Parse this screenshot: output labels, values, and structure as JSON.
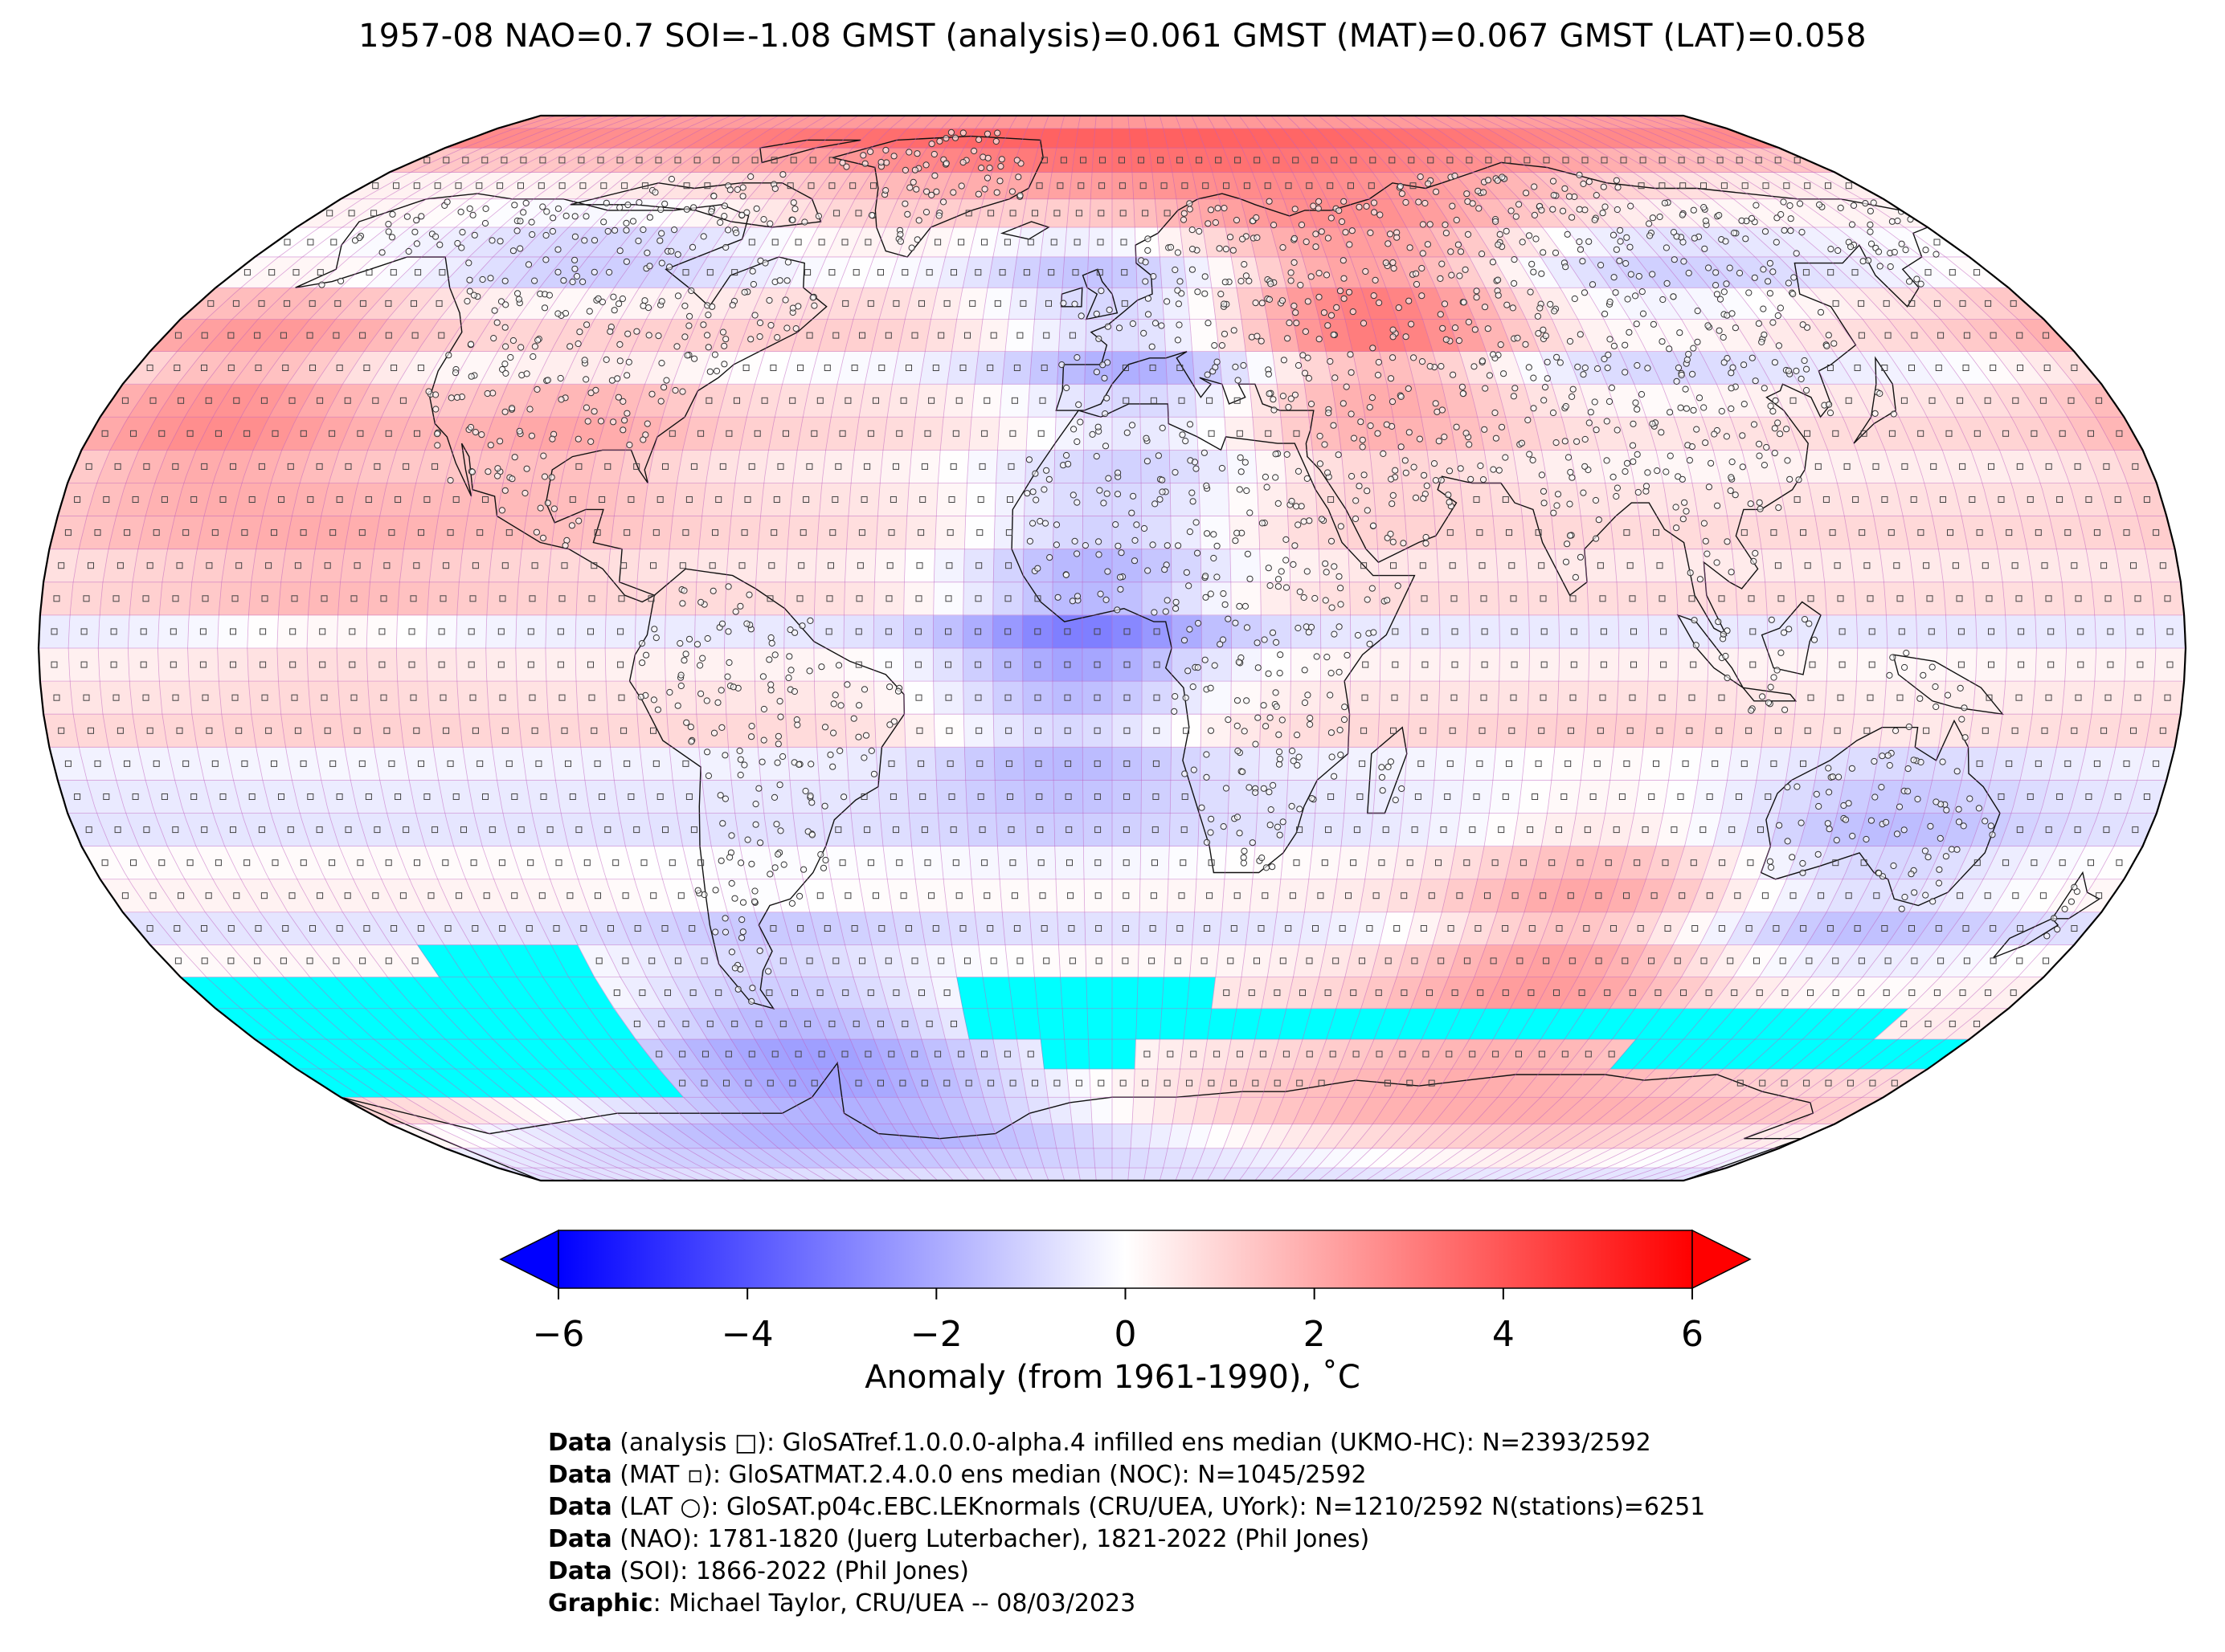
{
  "title": "1957-08 NAO=0.7 SOI=-1.08 GMST (analysis)=0.061 GMST (MAT)=0.067 GMST (LAT)=0.058",
  "colors": {
    "neg_max": "#0000ff",
    "zero": "#ffffff",
    "pos_max": "#ff0000",
    "missing": "#00ffff",
    "grid": "#c060c0",
    "coast": "#111111"
  },
  "colorbar": {
    "min": -6,
    "max": 6,
    "extend": "both",
    "ticks": [
      {
        "value": -6,
        "label": "−6"
      },
      {
        "value": -4,
        "label": "−4"
      },
      {
        "value": -2,
        "label": "−2"
      },
      {
        "value": 0,
        "label": "0"
      },
      {
        "value": 2,
        "label": "2"
      },
      {
        "value": 4,
        "label": "4"
      },
      {
        "value": 6,
        "label": "6"
      }
    ],
    "label": "Anomaly (from 1961-1990), ˚C"
  },
  "credits": [
    {
      "bold": "Data",
      "text": " (analysis □): GloSATref.1.0.0.0-alpha.4 infilled ens median (UKMO-HC): N=2393/2592"
    },
    {
      "bold": "Data",
      "text": " (MAT ▫): GloSATMAT.2.4.0.0 ens median (NOC): N=1045/2592"
    },
    {
      "bold": "Data",
      "text": " (LAT ○): GloSAT.p04c.EBC.LEKnormals (CRU/UEA, UYork): N=1210/2592 N(stations)=6251"
    },
    {
      "bold": "Data",
      "text": " (NAO): 1781-1820 (Juerg Luterbacher), 1821-2022 (Phil Jones)"
    },
    {
      "bold": "Data",
      "text": " (SOI): 1866-2022 (Phil Jones)"
    },
    {
      "bold": "Graphic",
      "text": ": Michael Taylor, CRU/UEA -- 08/03/2023"
    }
  ],
  "map": {
    "projection": "Robinson",
    "grid_resolution_deg": 5,
    "zonal_anomaly_profile": [
      {
        "lat": 87.5,
        "value": 0.6
      },
      {
        "lat": 82.5,
        "value": 1.5
      },
      {
        "lat": 77.5,
        "value": 1.0
      },
      {
        "lat": 72.5,
        "value": 0.4
      },
      {
        "lat": 67.5,
        "value": 0.2
      },
      {
        "lat": 62.5,
        "value": -0.4
      },
      {
        "lat": 57.5,
        "value": -0.6
      },
      {
        "lat": 52.5,
        "value": 0.4
      },
      {
        "lat": 47.5,
        "value": 0.8
      },
      {
        "lat": 42.5,
        "value": -0.3
      },
      {
        "lat": 37.5,
        "value": 0.6
      },
      {
        "lat": 32.5,
        "value": 0.9
      },
      {
        "lat": 27.5,
        "value": 0.4
      },
      {
        "lat": 22.5,
        "value": 0.7
      },
      {
        "lat": 17.5,
        "value": 0.9
      },
      {
        "lat": 12.5,
        "value": 0.5
      },
      {
        "lat": 7.5,
        "value": 0.8
      },
      {
        "lat": 2.5,
        "value": -0.5
      },
      {
        "lat": -2.5,
        "value": 0.3
      },
      {
        "lat": -7.5,
        "value": 0.6
      },
      {
        "lat": -12.5,
        "value": 0.9
      },
      {
        "lat": -17.5,
        "value": -0.3
      },
      {
        "lat": -22.5,
        "value": -0.5
      },
      {
        "lat": -27.5,
        "value": -0.6
      },
      {
        "lat": -32.5,
        "value": 0.1
      },
      {
        "lat": -37.5,
        "value": 0.3
      },
      {
        "lat": -42.5,
        "value": -0.6
      },
      {
        "lat": -47.5,
        "value": 0.2
      },
      {
        "lat": -52.5,
        "value": 0.5
      },
      {
        "lat": -57.5,
        "value": 0.6
      },
      {
        "lat": -62.5,
        "value": 0.5
      },
      {
        "lat": -67.5,
        "value": 0.9
      },
      {
        "lat": -72.5,
        "value": 1.2
      },
      {
        "lat": -77.5,
        "value": 0.8
      },
      {
        "lat": -82.5,
        "value": 0.7
      },
      {
        "lat": -87.5,
        "value": 0.6
      }
    ],
    "regional_anomalies": [
      {
        "region": "Greenland / Labrador Sea",
        "lat": 72,
        "lon": -55,
        "value": 2.6
      },
      {
        "region": "Northwest Russia",
        "lat": 65,
        "lon": 50,
        "value": 3.2
      },
      {
        "region": "Eastern Europe",
        "lat": 50,
        "lon": 40,
        "value": 2.0
      },
      {
        "region": "Western Canada",
        "lat": 55,
        "lon": -115,
        "value": -1.6
      },
      {
        "region": "Central Europe",
        "lat": 52,
        "lon": 12,
        "value": -2.0
      },
      {
        "region": "Siberia",
        "lat": 55,
        "lon": 95,
        "value": -1.6
      },
      {
        "region": "Hudson Bay",
        "lat": 60,
        "lon": -80,
        "value": -1.8
      },
      {
        "region": "Central USA",
        "lat": 40,
        "lon": -95,
        "value": 1.4
      },
      {
        "region": "Eastern Pacific",
        "lat": 15,
        "lon": -130,
        "value": 1.8
      },
      {
        "region": "North Pacific",
        "lat": 40,
        "lon": -160,
        "value": 1.6
      },
      {
        "region": "Antarctic Peninsula",
        "lat": -70,
        "lon": -65,
        "value": -2.2
      },
      {
        "region": "East Antarctica",
        "lat": -73,
        "lon": 90,
        "value": 1.6
      },
      {
        "region": "Southern Ocean (Indian)",
        "lat": -45,
        "lon": 85,
        "value": 1.4
      },
      {
        "region": "Southern Australia",
        "lat": -35,
        "lon": 135,
        "value": -1.0
      },
      {
        "region": "West Africa",
        "lat": 10,
        "lon": 0,
        "value": -1.0
      },
      {
        "region": "Tropical South Atlantic",
        "lat": -5,
        "lon": -10,
        "value": -1.2
      }
    ],
    "missing_regions": [
      {
        "lat_min": -70,
        "lat_max": -50,
        "lon_min": -180,
        "lon_max": -100
      },
      {
        "lat_min": -65,
        "lat_max": -45,
        "lon_min": -130,
        "lon_max": -100
      },
      {
        "lat_min": -60,
        "lat_max": -50,
        "lon_min": -30,
        "lon_max": 20
      },
      {
        "lat_min": -65,
        "lat_max": -60,
        "lon_min": -15,
        "lon_max": 5
      },
      {
        "lat_min": -60,
        "lat_max": -55,
        "lon_min": 20,
        "lon_max": 160
      },
      {
        "lat_min": -65,
        "lat_max": -60,
        "lon_min": 110,
        "lon_max": 180
      }
    ]
  }
}
